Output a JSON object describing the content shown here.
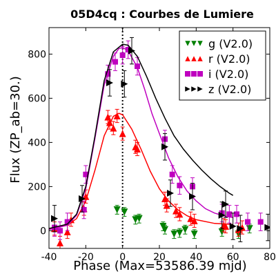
{
  "chart_data": {
    "type": "scatter",
    "title": "05D4cq : Courbes de Lumiere",
    "xlabel": "Phase (Max=53586.39 mjd)",
    "ylabel": "Flux (ZP_ab=30.)",
    "xlim": [
      -40,
      80
    ],
    "ylim": [
      -80,
      920
    ],
    "xticks": [
      -40,
      -20,
      0,
      20,
      40,
      60,
      80
    ],
    "yticks": [
      0,
      200,
      400,
      600,
      800
    ],
    "xtick_labels": [
      "-40",
      "-20",
      "0",
      "20",
      "40",
      "60",
      "80"
    ],
    "ytick_labels": [
      "0",
      "200",
      "400",
      "600",
      "800"
    ],
    "max_line_x": 0,
    "legend_position": "top-right",
    "series": [
      {
        "name": "g (V2.0)",
        "color": "#008000",
        "marker": "triangle-down",
        "points": [
          {
            "x": 22,
            "y": 20,
            "err": 20
          },
          {
            "x": -3,
            "y": 95,
            "err": 20
          },
          {
            "x": 1,
            "y": 85,
            "err": 20
          },
          {
            "x": 7,
            "y": 50,
            "err": 20
          },
          {
            "x": 9,
            "y": 55,
            "err": 20
          },
          {
            "x": 23,
            "y": 5,
            "err": 20
          },
          {
            "x": 28,
            "y": -15,
            "err": 20
          },
          {
            "x": 31,
            "y": -10,
            "err": 20
          },
          {
            "x": 34,
            "y": 5,
            "err": 20
          },
          {
            "x": 39,
            "y": -15,
            "err": 20
          },
          {
            "x": 54,
            "y": -5,
            "err": 20
          },
          {
            "x": 63,
            "y": -15,
            "err": 20
          },
          {
            "x": 69,
            "y": 10,
            "err": 20
          }
        ],
        "curve": []
      },
      {
        "name": "r (V2.0)",
        "color": "#ff0000",
        "marker": "triangle-up",
        "points": [
          {
            "x": -37,
            "y": 10,
            "err": 30
          },
          {
            "x": -34,
            "y": -55,
            "err": 30
          },
          {
            "x": -30,
            "y": -5,
            "err": 30
          },
          {
            "x": -28,
            "y": 50,
            "err": 30
          },
          {
            "x": -21,
            "y": 100,
            "err": 30
          },
          {
            "x": -20,
            "y": 155,
            "err": 30
          },
          {
            "x": -8,
            "y": 515,
            "err": 30
          },
          {
            "x": -7,
            "y": 490,
            "err": 30
          },
          {
            "x": -5,
            "y": 465,
            "err": 30
          },
          {
            "x": -3,
            "y": 520,
            "err": 30
          },
          {
            "x": 0,
            "y": 440,
            "err": 30
          },
          {
            "x": 7,
            "y": 380,
            "err": 30
          },
          {
            "x": 8,
            "y": 370,
            "err": 30
          },
          {
            "x": 23,
            "y": 145,
            "err": 30
          },
          {
            "x": 24,
            "y": 115,
            "err": 30
          },
          {
            "x": 29,
            "y": 90,
            "err": 30
          },
          {
            "x": 31,
            "y": 75,
            "err": 30
          },
          {
            "x": 37,
            "y": 55,
            "err": 30
          },
          {
            "x": 39,
            "y": 45,
            "err": 30
          },
          {
            "x": 55,
            "y": 25,
            "err": 30
          },
          {
            "x": 56,
            "y": 20,
            "err": 30
          },
          {
            "x": 63,
            "y": 5,
            "err": 30
          },
          {
            "x": 65,
            "y": 15,
            "err": 30
          }
        ],
        "curve": [
          {
            "x": -40,
            "y": 10
          },
          {
            "x": -30,
            "y": 25
          },
          {
            "x": -25,
            "y": 55
          },
          {
            "x": -20,
            "y": 135
          },
          {
            "x": -15,
            "y": 275
          },
          {
            "x": -10,
            "y": 430
          },
          {
            "x": -5,
            "y": 518
          },
          {
            "x": -2,
            "y": 532
          },
          {
            "x": 0,
            "y": 525
          },
          {
            "x": 5,
            "y": 460
          },
          {
            "x": 10,
            "y": 370
          },
          {
            "x": 15,
            "y": 270
          },
          {
            "x": 20,
            "y": 190
          },
          {
            "x": 25,
            "y": 135
          },
          {
            "x": 30,
            "y": 95
          },
          {
            "x": 35,
            "y": 68
          },
          {
            "x": 40,
            "y": 50
          },
          {
            "x": 50,
            "y": 33
          },
          {
            "x": 60,
            "y": 28
          }
        ]
      },
      {
        "name": "i (V2.0)",
        "color": "#bf00bf",
        "marker": "square",
        "points": [
          {
            "x": -37,
            "y": 15,
            "err": 40
          },
          {
            "x": -34,
            "y": 0,
            "err": 40
          },
          {
            "x": -30,
            "y": 40,
            "err": 40
          },
          {
            "x": -21,
            "y": 95,
            "err": 40
          },
          {
            "x": -20,
            "y": 255,
            "err": 40
          },
          {
            "x": -8,
            "y": 710,
            "err": 40
          },
          {
            "x": -4,
            "y": 765,
            "err": 40
          },
          {
            "x": 0,
            "y": 795,
            "err": 40
          },
          {
            "x": 3,
            "y": 820,
            "err": 40
          },
          {
            "x": 8,
            "y": 745,
            "err": 40
          },
          {
            "x": 23,
            "y": 415,
            "err": 40
          },
          {
            "x": 27,
            "y": 255,
            "err": 40
          },
          {
            "x": 31,
            "y": 205,
            "err": 40
          },
          {
            "x": 38,
            "y": 200,
            "err": 40
          },
          {
            "x": 54,
            "y": 80,
            "err": 40
          },
          {
            "x": 58,
            "y": 75,
            "err": 40
          },
          {
            "x": 62,
            "y": 75,
            "err": 40
          },
          {
            "x": 68,
            "y": 40,
            "err": 40
          },
          {
            "x": 75,
            "y": 40,
            "err": 40
          }
        ],
        "curve": [
          {
            "x": -40,
            "y": 5
          },
          {
            "x": -30,
            "y": 25
          },
          {
            "x": -25,
            "y": 70
          },
          {
            "x": -20,
            "y": 190
          },
          {
            "x": -15,
            "y": 420
          },
          {
            "x": -10,
            "y": 660
          },
          {
            "x": -5,
            "y": 790
          },
          {
            "x": -2,
            "y": 825
          },
          {
            "x": 0,
            "y": 830
          },
          {
            "x": 3,
            "y": 815
          },
          {
            "x": 8,
            "y": 740
          },
          {
            "x": 12,
            "y": 640
          },
          {
            "x": 16,
            "y": 530
          },
          {
            "x": 20,
            "y": 440
          },
          {
            "x": 25,
            "y": 330
          },
          {
            "x": 30,
            "y": 245
          },
          {
            "x": 35,
            "y": 180
          },
          {
            "x": 40,
            "y": 135
          },
          {
            "x": 45,
            "y": 100
          },
          {
            "x": 50,
            "y": 80
          },
          {
            "x": 56,
            "y": 65
          },
          {
            "x": 60,
            "y": 60
          }
        ]
      },
      {
        "name": "z (V2.0)",
        "color": "#000000",
        "marker": "triangle-right",
        "points": [
          {
            "x": -37,
            "y": 55,
            "err": 60
          },
          {
            "x": -22,
            "y": 145,
            "err": 60
          },
          {
            "x": -7,
            "y": 670,
            "err": 60
          },
          {
            "x": 1,
            "y": 665,
            "err": 60
          },
          {
            "x": 5,
            "y": 815,
            "err": 60
          },
          {
            "x": 23,
            "y": 380,
            "err": 60
          },
          {
            "x": 26,
            "y": 170,
            "err": 60
          },
          {
            "x": 38,
            "y": 155,
            "err": 60
          },
          {
            "x": 54,
            "y": 70,
            "err": 60
          },
          {
            "x": 56,
            "y": 120,
            "err": 60
          },
          {
            "x": 60,
            "y": 20,
            "err": 60
          },
          {
            "x": 64,
            "y": 10,
            "err": 60
          },
          {
            "x": 79,
            "y": 15,
            "err": 60
          }
        ],
        "curve": [
          {
            "x": -40,
            "y": 10
          },
          {
            "x": -30,
            "y": 30
          },
          {
            "x": -25,
            "y": 75
          },
          {
            "x": -20,
            "y": 200
          },
          {
            "x": -15,
            "y": 430
          },
          {
            "x": -10,
            "y": 680
          },
          {
            "x": -5,
            "y": 810
          },
          {
            "x": 0,
            "y": 845
          },
          {
            "x": 3,
            "y": 840
          },
          {
            "x": 8,
            "y": 790
          },
          {
            "x": 13,
            "y": 700
          },
          {
            "x": 18,
            "y": 600
          },
          {
            "x": 23,
            "y": 510
          },
          {
            "x": 28,
            "y": 430
          },
          {
            "x": 33,
            "y": 370
          },
          {
            "x": 38,
            "y": 320
          },
          {
            "x": 43,
            "y": 275
          },
          {
            "x": 48,
            "y": 235
          },
          {
            "x": 53,
            "y": 200
          },
          {
            "x": 58,
            "y": 170
          },
          {
            "x": 60,
            "y": 160
          }
        ]
      }
    ]
  }
}
